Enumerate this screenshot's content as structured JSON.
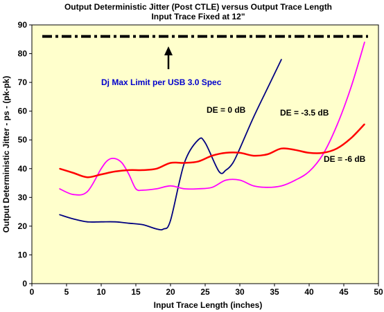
{
  "chart_data": {
    "type": "line",
    "title": "Output Deterministic Jitter (Post CTLE) versus Output Trace Length",
    "subtitle": "Input Trace Fixed at 12\"",
    "xlabel": "Input Trace Length (inches)",
    "ylabel": "Output Deterministic Jitter - ps - (pk-pk)",
    "xlim": [
      0,
      50
    ],
    "ylim": [
      0,
      90
    ],
    "x_ticks": [
      0,
      5,
      10,
      15,
      20,
      25,
      30,
      35,
      40,
      45,
      50
    ],
    "y_ticks": [
      0,
      10,
      20,
      30,
      40,
      50,
      60,
      70,
      80,
      90
    ],
    "grid": false,
    "plot_background": "#FFFFCC",
    "series": [
      {
        "name": "DE = 0 dB",
        "color": "#000080",
        "x": [
          4,
          6,
          8,
          10,
          12,
          14,
          16,
          18,
          19,
          20,
          22,
          24,
          25,
          27,
          28,
          29,
          30,
          32,
          34,
          36
        ],
        "y": [
          24,
          22.5,
          21.5,
          21.5,
          21.5,
          21,
          20.5,
          19,
          19,
          22,
          42,
          50,
          49,
          39,
          39.5,
          42,
          47,
          58,
          68,
          78
        ]
      },
      {
        "name": "DE = -3.5 dB",
        "color": "#FF00FF",
        "x": [
          4,
          6,
          8,
          10,
          11,
          12,
          13,
          14,
          15,
          16,
          18,
          20,
          22,
          24,
          26,
          28,
          30,
          32,
          34,
          36,
          38,
          40,
          42,
          44,
          46,
          48
        ],
        "y": [
          33,
          31,
          32,
          40,
          43,
          43.5,
          42,
          38,
          33,
          32.5,
          33,
          34,
          33,
          33,
          33.5,
          36,
          36,
          34,
          33.5,
          34,
          36,
          39,
          45,
          55,
          68,
          84
        ]
      },
      {
        "name": "DE = -6 dB",
        "color": "#FF0000",
        "x": [
          4,
          6,
          8,
          10,
          12,
          14,
          16,
          18,
          20,
          22,
          24,
          26,
          28,
          30,
          32,
          34,
          36,
          38,
          40,
          42,
          44,
          46,
          48
        ],
        "y": [
          40,
          38.5,
          37,
          38,
          39,
          39.5,
          39.5,
          40,
          42,
          42,
          42.5,
          44.5,
          45.5,
          45.5,
          44.5,
          45,
          47,
          46.5,
          45.5,
          45.5,
          47,
          50.5,
          55.5
        ]
      }
    ],
    "limit_line": {
      "y": 86,
      "x_range": [
        1.5,
        48.5
      ],
      "color": "#000000"
    },
    "annotations": [
      {
        "text": "Dj Max Limit  per USB 3.0 Spec",
        "color": "#0000CC"
      },
      {
        "text": "DE = 0 dB",
        "color": "#000000"
      },
      {
        "text": "DE = -3.5 dB",
        "color": "#000000"
      },
      {
        "text": "DE = -6 dB",
        "color": "#000000"
      }
    ]
  }
}
